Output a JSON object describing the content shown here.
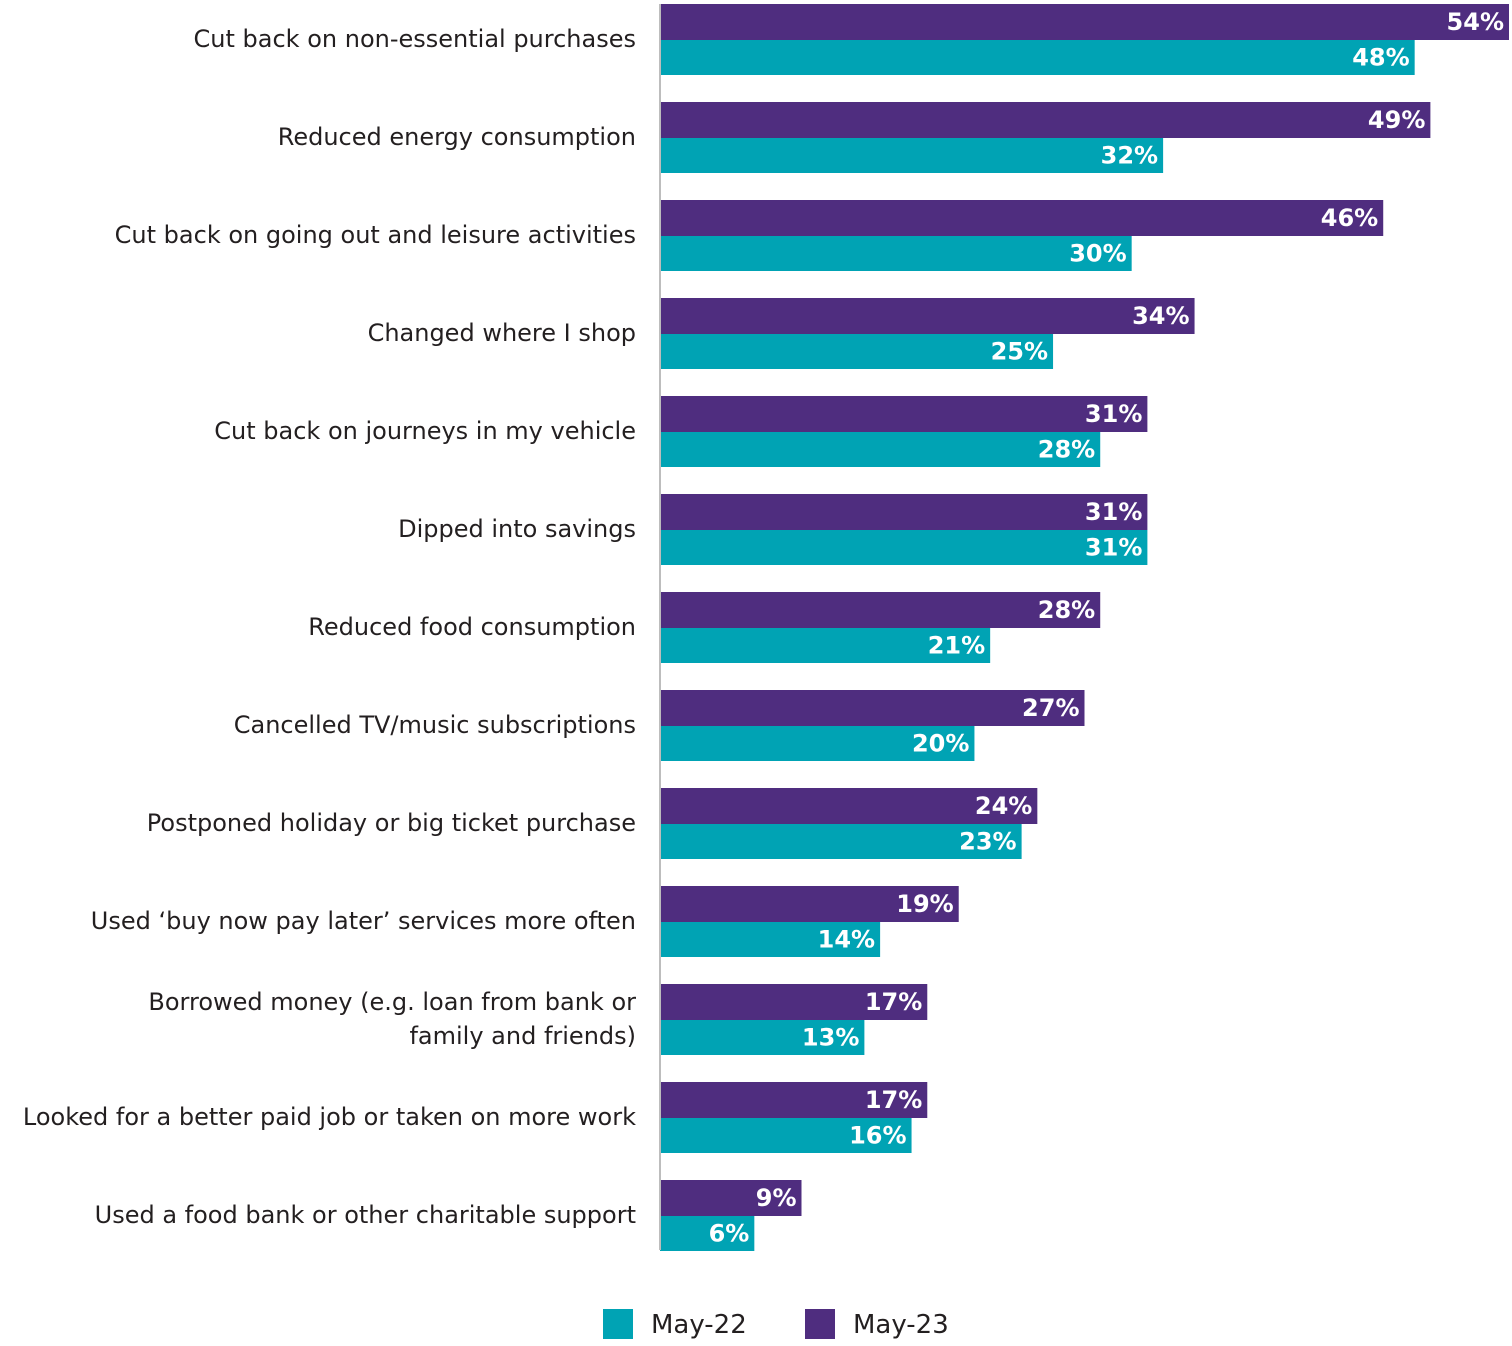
{
  "chart_data": {
    "type": "bar",
    "orientation": "horizontal",
    "categories": [
      "Cut back on non-essential purchases",
      "Reduced energy consumption",
      "Cut back on going out and leisure activities",
      "Changed where I shop",
      "Cut back on journeys in my vehicle",
      "Dipped into savings",
      "Reduced food consumption",
      "Cancelled TV/music subscriptions",
      "Postponed holiday or big ticket purchase",
      "Used ‘buy now pay later’ services more often",
      "Borrowed money (e.g. loan from bank or\nfamily and friends)",
      "Looked for a better paid job or taken on more work",
      "Used a food bank or other charitable support"
    ],
    "series": [
      {
        "name": "May-23",
        "color": "#4F2D7F",
        "values": [
          54,
          49,
          46,
          34,
          31,
          31,
          28,
          27,
          24,
          19,
          17,
          17,
          9
        ]
      },
      {
        "name": "May-22",
        "color": "#00A3B4",
        "values": [
          48,
          32,
          30,
          25,
          28,
          31,
          21,
          20,
          23,
          14,
          13,
          16,
          6
        ]
      }
    ],
    "value_format": "{v}%",
    "xlim": [
      0,
      54
    ],
    "grid": false,
    "legend": {
      "position": "bottom",
      "order": [
        "May-22",
        "May-23"
      ]
    }
  }
}
